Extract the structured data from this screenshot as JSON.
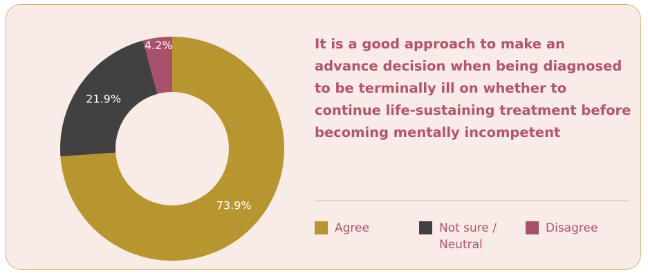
{
  "chart_data": {
    "type": "donut",
    "title": "It is a good approach to make an advance decision when being diagnosed to be terminally ill on whether to continue life-sustaining treatment before becoming mentally incompetent",
    "categories": [
      "Agree",
      "Not sure / Neutral",
      "Disagree"
    ],
    "values": [
      73.9,
      21.9,
      4.2
    ],
    "value_labels": [
      "73.9%",
      "21.9%",
      "4.2%"
    ],
    "colors": [
      "#b8962f",
      "#414141",
      "#a9506a"
    ]
  }
}
